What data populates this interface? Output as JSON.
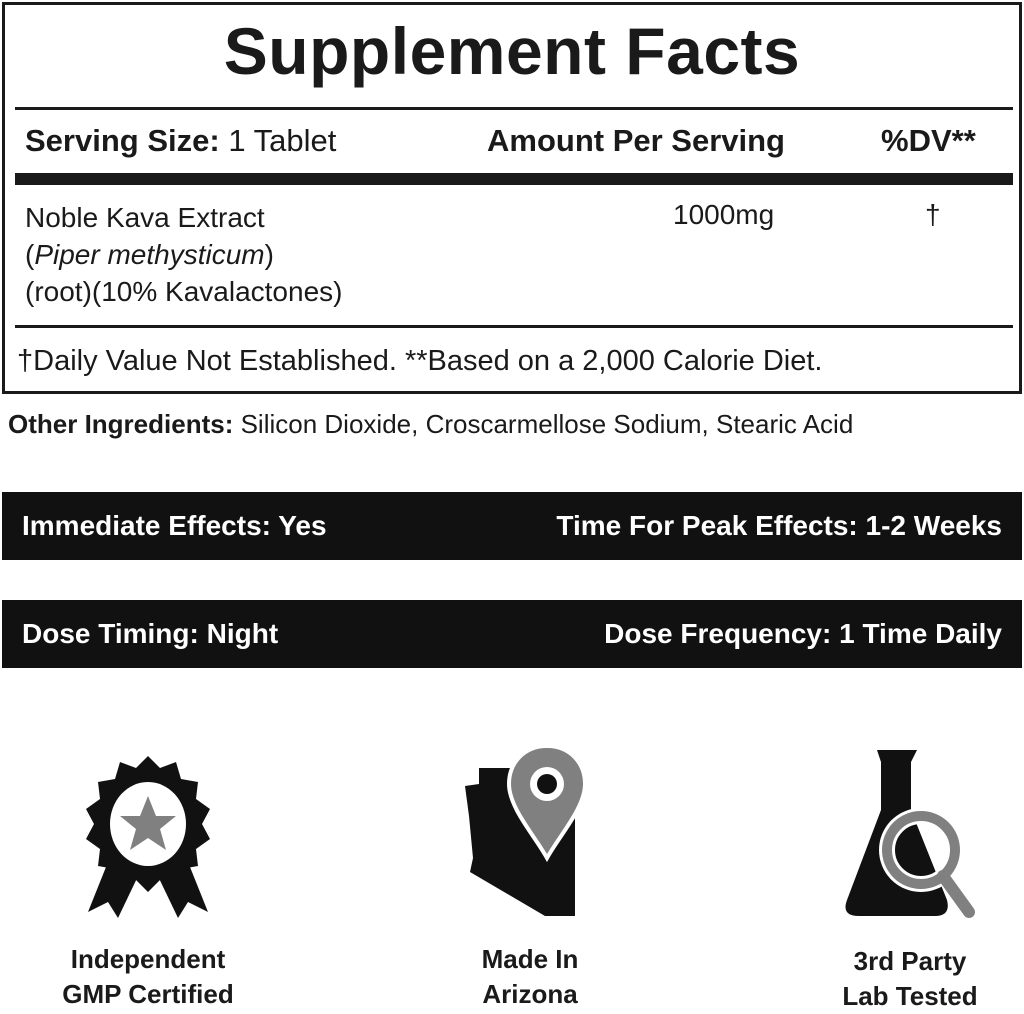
{
  "facts": {
    "title": "Supplement Facts",
    "serving_size_label": "Serving Size:",
    "serving_size_value": "1 Tablet",
    "amount_header": "Amount Per Serving",
    "dv_header": "%DV**",
    "ingredient": {
      "name": "Noble Kava Extract",
      "latin_open": "(",
      "latin": "Piper methysticum",
      "latin_close": ")",
      "detail": "(root)(10% Kavalactones)",
      "amount": "1000mg",
      "dv": "†"
    },
    "footnote": "†Daily Value Not Established. **Based on a 2,000 Calorie Diet."
  },
  "other_ingredients": {
    "label": "Other Ingredients:",
    "value": "Silicon Dioxide, Croscarmellose Sodium, Stearic Acid"
  },
  "info_bars": [
    {
      "left": "Immediate Effects: Yes",
      "right": "Time For Peak Effects: 1-2 Weeks"
    },
    {
      "left": "Dose Timing: Night",
      "right": "Dose Frequency: 1 Time Daily"
    }
  ],
  "badges": [
    {
      "icon": "award-rosette-star-icon",
      "line1": "Independent",
      "line2": "GMP Certified"
    },
    {
      "icon": "arizona-map-pin-icon",
      "line1": "Made In",
      "line2": "Arizona"
    },
    {
      "icon": "flask-magnifier-icon",
      "line1": "3rd Party",
      "line2": "Lab Tested"
    }
  ],
  "colors": {
    "ink": "#1a1a1a",
    "icon_gray": "#808080",
    "bar_bg": "#111111"
  }
}
